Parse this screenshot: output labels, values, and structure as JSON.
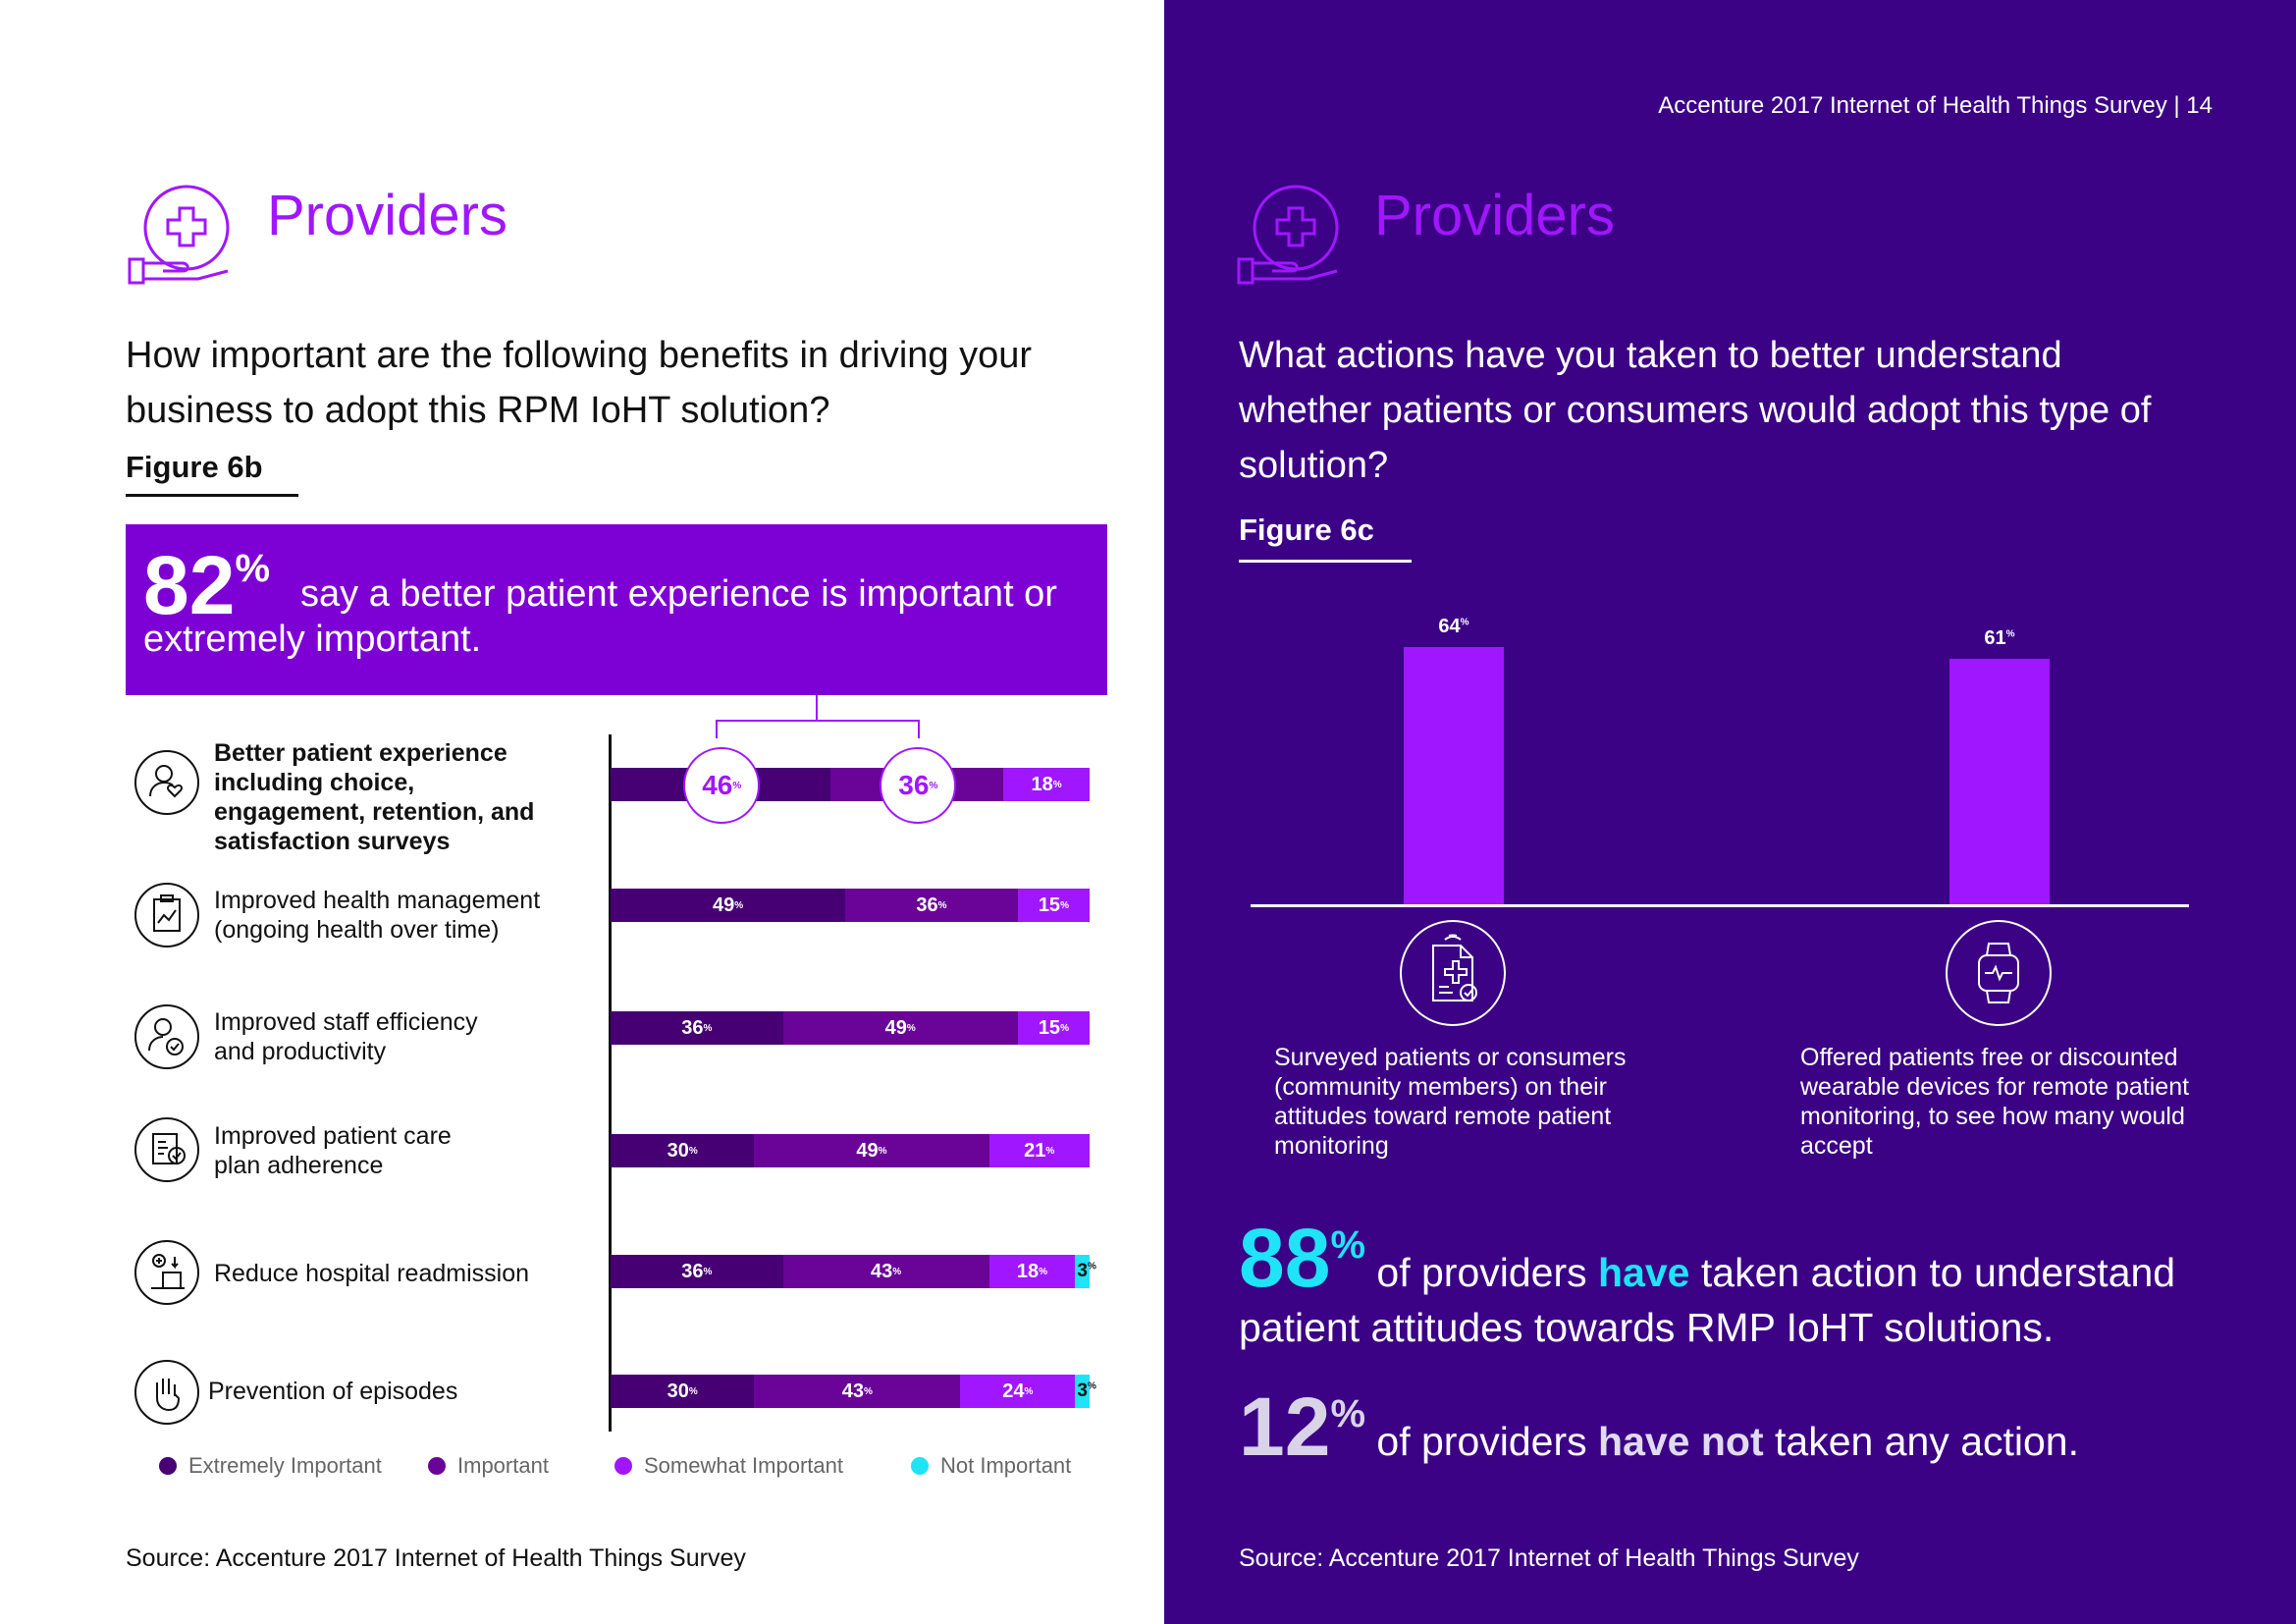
{
  "header": {
    "title": "Accenture 2017 Internet of Health Things Survey | 14"
  },
  "left": {
    "section_title": "Providers",
    "question": "How important are the following benefits in driving your business to adopt this RPM IoHT solution?",
    "figure_label": "Figure 6b",
    "callout": {
      "number": "82",
      "pct": "%",
      "text": "say a better patient experience is important or extremely important."
    },
    "source": "Source: Accenture 2017 Internet of Health Things Survey"
  },
  "right": {
    "section_title": "Providers",
    "question": "What actions have you taken to better understand whether patients or consumers would adopt this type of solution?",
    "figure_label": "Figure 6c",
    "stat1": {
      "number": "88",
      "pct": "%",
      "pre": "of providers ",
      "emph": "have",
      "post": " taken action to understand patient attitudes towards RMP IoHT solutions."
    },
    "stat2": {
      "number": "12",
      "pct": "%",
      "pre": "of providers ",
      "emph": "have not",
      "post": " taken any action."
    },
    "source": "Source: Accenture 2017 Internet of Health Things Survey"
  },
  "chart_data": [
    {
      "type": "bar",
      "orientation": "horizontal-stacked",
      "title": "Figure 6b",
      "categories": [
        "Better patient experience including choice, engagement, retention, and satisfaction surveys",
        "Improved health management (ongoing health over time)",
        "Improved staff efficiency and productivity",
        "Improved patient care plan adherence",
        "Reduce hospital readmission",
        "Prevention of episodes"
      ],
      "series": [
        {
          "name": "Extremely Important",
          "color": "#460073",
          "values": [
            46,
            49,
            36,
            30,
            36,
            30
          ]
        },
        {
          "name": "Important",
          "color": "#6a0499",
          "values": [
            36,
            36,
            49,
            49,
            43,
            43
          ]
        },
        {
          "name": "Somewhat Important",
          "color": "#a017ff",
          "values": [
            18,
            15,
            15,
            21,
            18,
            24
          ]
        },
        {
          "name": "Not Important",
          "color": "#1fe3f7",
          "values": [
            0,
            0,
            0,
            0,
            3,
            3
          ]
        }
      ],
      "unit": "%",
      "xlim": [
        0,
        100
      ]
    },
    {
      "type": "bar",
      "title": "Figure 6c",
      "categories": [
        "Surveyed patients or consumers (community members) on their attitudes toward remote patient monitoring",
        "Offered patients free or discounted wearable devices for remote patient monitoring, to see how many would accept"
      ],
      "values": [
        64,
        61
      ],
      "unit": "%",
      "ylim": [
        0,
        64
      ],
      "color": "#a017ff"
    }
  ]
}
